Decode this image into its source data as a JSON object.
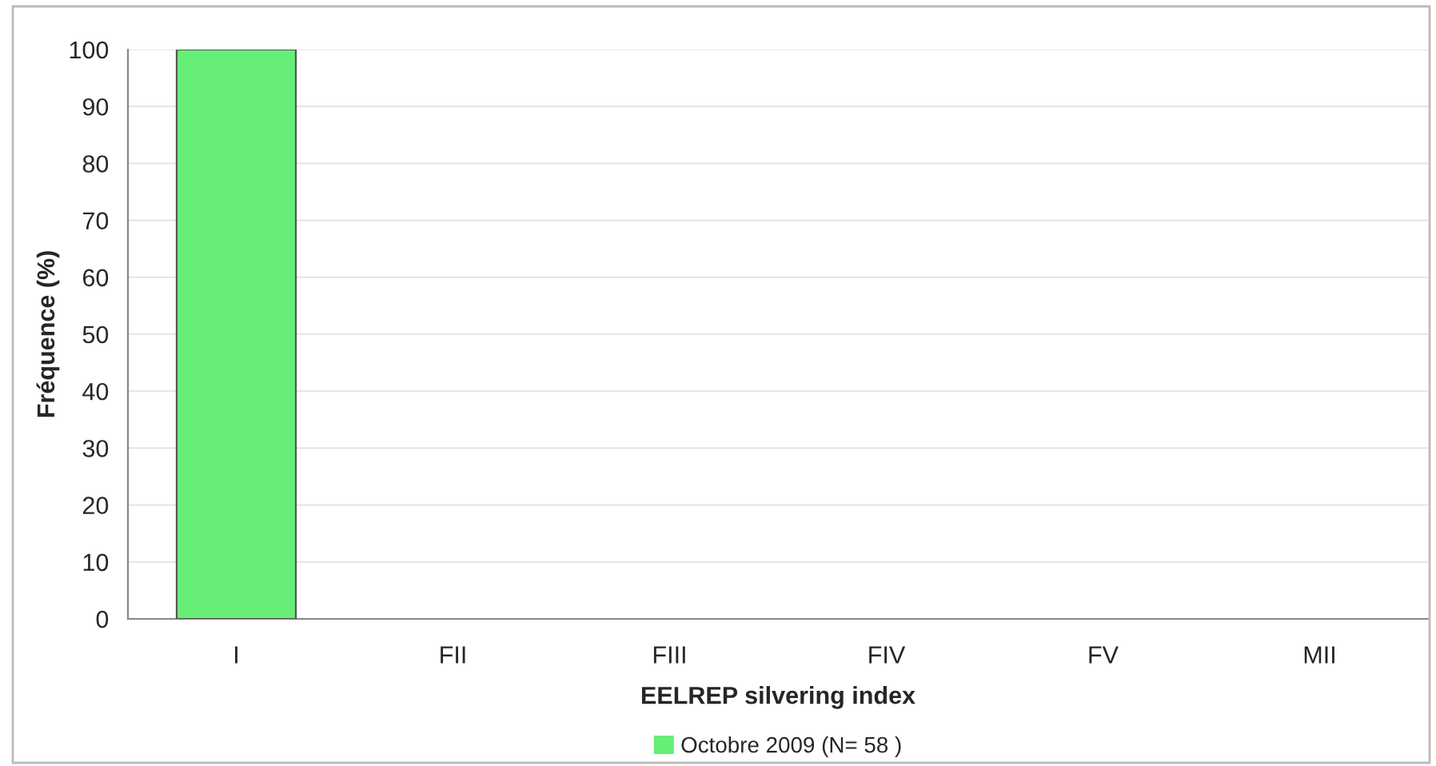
{
  "chart_data": {
    "type": "bar",
    "xlabel": "EELREP silvering index",
    "ylabel": "Fréquence (%)",
    "categories": [
      "I",
      "FII",
      "FIII",
      "FIV",
      "FV",
      "MII"
    ],
    "series": [
      {
        "name": "Octobre 2009 (N= 58 )",
        "color": "#66ee77",
        "values": [
          100,
          0,
          0,
          0,
          0,
          0
        ]
      }
    ],
    "ylim": [
      0,
      100
    ],
    "yticks": [
      0,
      10,
      20,
      30,
      40,
      50,
      60,
      70,
      80,
      90,
      100
    ],
    "grid": "y",
    "legend": "bottom"
  }
}
